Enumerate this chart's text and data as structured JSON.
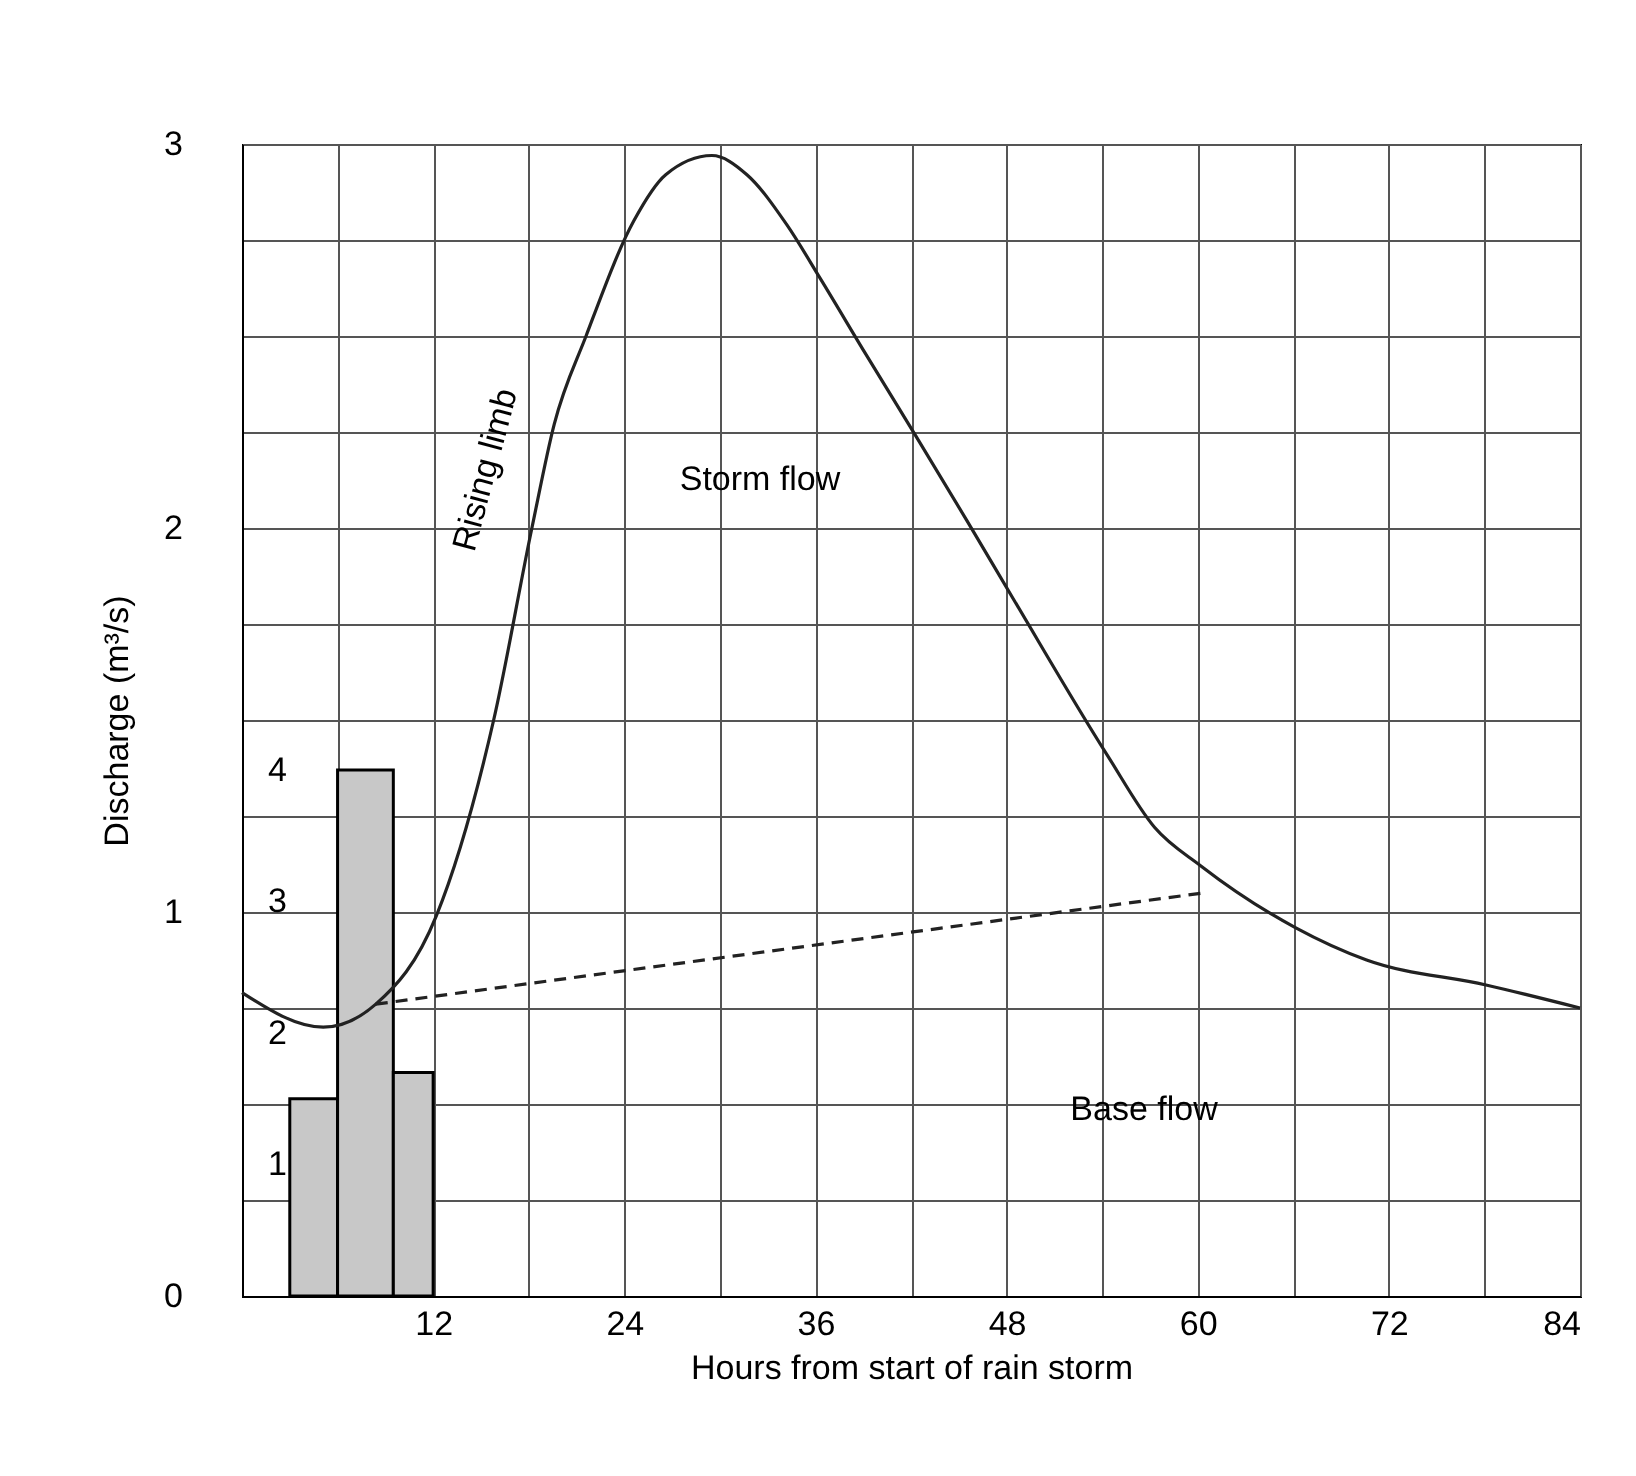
{
  "chart_data": {
    "type": "line",
    "xlabel": "Hours from start of rain storm",
    "ylabel": "Discharge (m³/s)",
    "xlim": [
      0,
      84
    ],
    "xticks": [
      {
        "value": 0,
        "label": null
      },
      {
        "value": 6,
        "label": null
      },
      12,
      {
        "value": 18,
        "label": null
      },
      24,
      {
        "value": 30,
        "label": null
      },
      36,
      {
        "value": 42,
        "label": null
      },
      48,
      {
        "value": 54,
        "label": null
      },
      60,
      {
        "value": 66,
        "label": null
      },
      72,
      {
        "value": 78,
        "label": null
      },
      84
    ],
    "ylim": [
      0,
      3
    ],
    "yticks": [
      0,
      {
        "value": 0.25,
        "label": null
      },
      {
        "value": 0.5,
        "label": null
      },
      {
        "value": 0.75,
        "label": null
      },
      1,
      {
        "value": 1.25,
        "label": null
      },
      {
        "value": 1.5,
        "label": null
      },
      {
        "value": 1.75,
        "label": null
      },
      2,
      {
        "value": 2.25,
        "label": null
      },
      {
        "value": 2.5,
        "label": null
      },
      {
        "value": 2.75,
        "label": null
      },
      3
    ],
    "y2lim": [
      0,
      8.76
    ],
    "y2ticks": [
      1,
      2,
      3,
      4
    ],
    "grid": true,
    "marker": "none",
    "annotations": [
      "Rising limb",
      "Storm flow",
      "Base flow"
    ],
    "series": [
      {
        "type": "histogram",
        "axis": "y2",
        "bins": [
          3,
          6,
          9.5,
          12
        ],
        "values": [
          1.5,
          4,
          1.7
        ],
        "color": "#c8c8c8"
      },
      {
        "type": "line",
        "x": [
          0,
          5.1,
          8.4,
          12.2,
          15.8,
          18.2,
          19.6,
          21.6,
          24.6,
          26.6,
          29.5,
          31.7,
          34.2,
          36.3,
          39.2,
          42.3,
          45.5,
          48.5,
          54.3,
          57.3,
          60.2,
          66.1,
          70.6,
          78.1,
          84
        ],
        "values": [
          0.79,
          0.7,
          0.76,
          0.99,
          1.5,
          2.0,
          2.27,
          2.5,
          2.8,
          2.92,
          2.97,
          2.92,
          2.79,
          2.65,
          2.45,
          2.24,
          2.02,
          1.81,
          1.41,
          1.22,
          1.12,
          0.96,
          0.875,
          0.81,
          0.75
        ],
        "color": "#222222",
        "line_style": "solid"
      },
      {
        "type": "line",
        "x": [
          8.4,
          60.4
        ],
        "values": [
          0.76,
          1.05
        ],
        "color": "#222222",
        "line_style": "dashed"
      }
    ]
  }
}
